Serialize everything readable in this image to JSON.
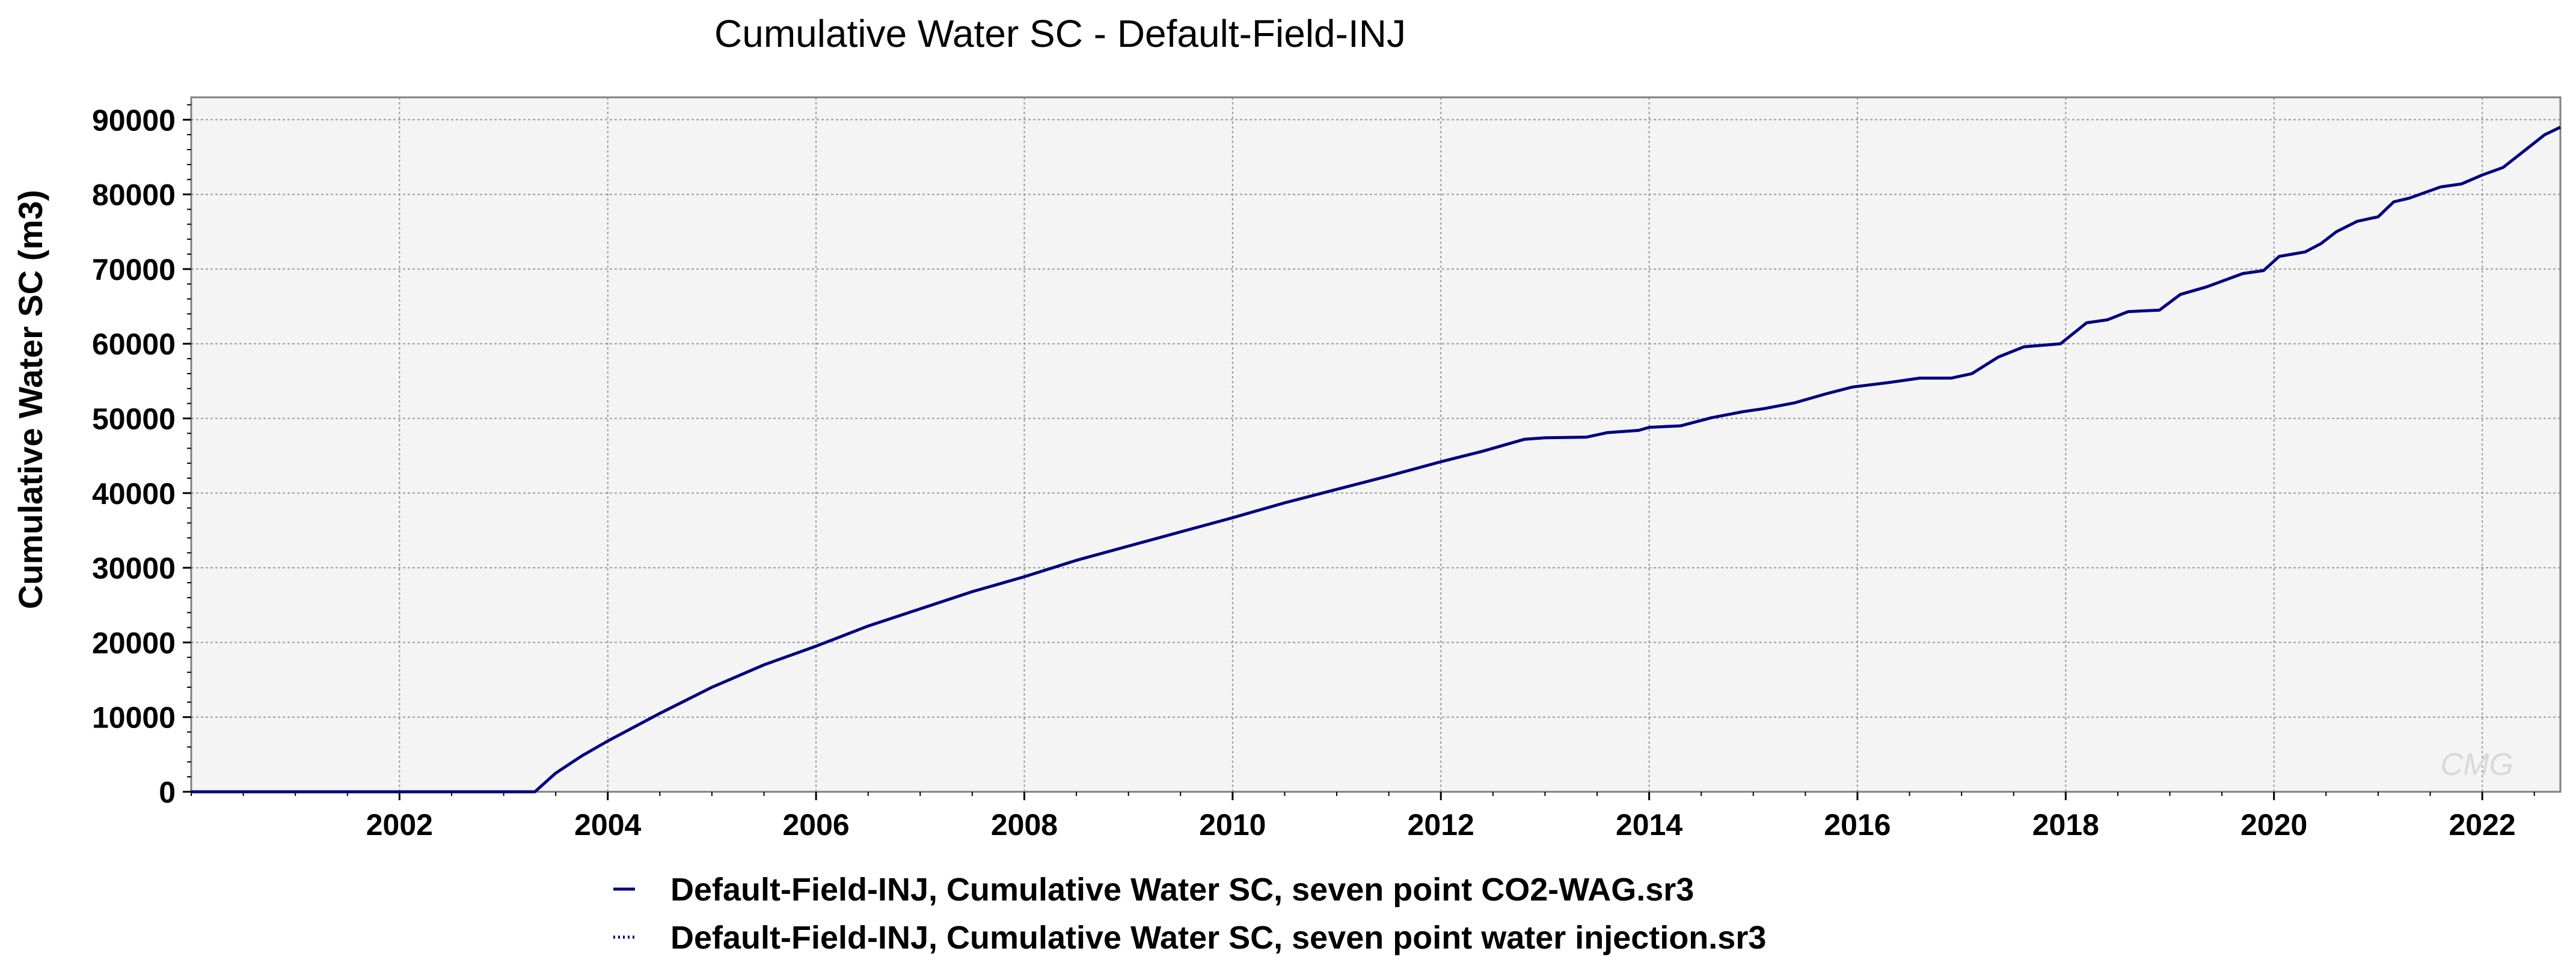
{
  "chart_data": {
    "type": "line",
    "title": "Cumulative Water SC - Default-Field-INJ",
    "xlabel": "",
    "ylabel": "Cumulative Water SC (m3)",
    "xlim": [
      2000.0,
      2022.75
    ],
    "ylim": [
      0,
      93000
    ],
    "x_ticks": [
      2002,
      2004,
      2006,
      2008,
      2010,
      2012,
      2014,
      2016,
      2018,
      2020,
      2022
    ],
    "y_ticks": [
      0,
      10000,
      20000,
      30000,
      40000,
      50000,
      60000,
      70000,
      80000,
      90000
    ],
    "grid": true,
    "legend_position": "bottom",
    "watermark": "CMG",
    "series": [
      {
        "name": "Default-Field-INJ, Cumulative Water SC, seven point CO2-WAG.sr3",
        "color": "#000080",
        "style": "solid",
        "x": [
          2000.0,
          2003.3,
          2003.5,
          2003.75,
          2004.0,
          2004.5,
          2005.0,
          2005.5,
          2006.0,
          2006.5,
          2007.0,
          2007.5,
          2008.0,
          2008.5,
          2009.0,
          2009.5,
          2010.0,
          2010.5,
          2011.0,
          2011.5,
          2012.0,
          2012.4,
          2012.8,
          2013.0,
          2013.4,
          2013.6,
          2013.9,
          2014.0,
          2014.3,
          2014.6,
          2014.9,
          2015.1,
          2015.4,
          2015.7,
          2015.95,
          2016.3,
          2016.6,
          2016.9,
          2017.1,
          2017.35,
          2017.6,
          2017.95,
          2018.2,
          2018.4,
          2018.6,
          2018.9,
          2019.1,
          2019.35,
          2019.7,
          2019.9,
          2020.05,
          2020.3,
          2020.45,
          2020.6,
          2020.8,
          2021.0,
          2021.15,
          2021.3,
          2021.6,
          2021.8,
          2022.0,
          2022.2,
          2022.4,
          2022.6,
          2022.75
        ],
        "y": [
          0,
          0,
          2500,
          4800,
          6800,
          10500,
          14000,
          17000,
          19500,
          22200,
          24500,
          26800,
          28800,
          31000,
          32900,
          34800,
          36700,
          38700,
          40500,
          42300,
          44200,
          45600,
          47200,
          47400,
          47500,
          48100,
          48400,
          48800,
          49000,
          50100,
          50900,
          51300,
          52100,
          53300,
          54200,
          54800,
          55400,
          55400,
          56000,
          58200,
          59600,
          60000,
          62800,
          63200,
          64300,
          64500,
          66600,
          67600,
          69400,
          69800,
          71700,
          72300,
          73400,
          75000,
          76400,
          77000,
          79000,
          79500,
          81000,
          81400,
          82600,
          83600,
          85800,
          88000,
          89000
        ]
      },
      {
        "name": "Default-Field-INJ, Cumulative Water SC, seven point water injection.sr3",
        "color": "#000080",
        "style": "dotted",
        "x": [],
        "y": []
      }
    ]
  }
}
